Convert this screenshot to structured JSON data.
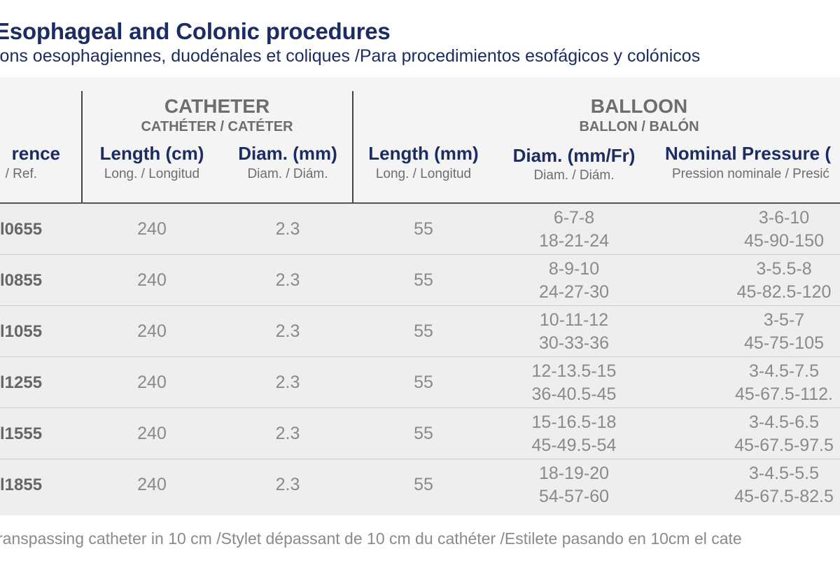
{
  "title": "Esophageal and Colonic procedures",
  "subtitle": "ions oesophagiennes, duodénales et coliques /Para procedimientos esofágicos y colónicos",
  "groups": {
    "catheter": {
      "title": "CATHETER",
      "subtitle": "CATHÉTER / CATÉTER"
    },
    "balloon": {
      "title": "BALLOON",
      "subtitle": "BALLON / BALÓN"
    }
  },
  "columns": {
    "reference": {
      "title": "rence",
      "subtitle": "/ Ref."
    },
    "cath_length": {
      "title": "Length (cm)",
      "subtitle": "Long. / Longitud"
    },
    "cath_diam": {
      "title": "Diam. (mm)",
      "subtitle": "Diam. / Diám."
    },
    "bal_length": {
      "title": "Length (mm)",
      "subtitle": "Long. / Longitud"
    },
    "bal_diam": {
      "title": "Diam. (mm/Fr)",
      "subtitle": "Diam. / Diám."
    },
    "pressure": {
      "title": "Nominal Pressure (",
      "subtitle": "Pression nominale / Presić"
    }
  },
  "rows": [
    {
      "ref": "l0655",
      "cath_length": "240",
      "cath_diam": "2.3",
      "bal_length": "55",
      "diam_mm": "6-7-8",
      "diam_fr": "18-21-24",
      "pressure_1": "3-6-10",
      "pressure_2": "45-90-150"
    },
    {
      "ref": "l0855",
      "cath_length": "240",
      "cath_diam": "2.3",
      "bal_length": "55",
      "diam_mm": "8-9-10",
      "diam_fr": "24-27-30",
      "pressure_1": "3-5.5-8",
      "pressure_2": "45-82.5-120"
    },
    {
      "ref": "l1055",
      "cath_length": "240",
      "cath_diam": "2.3",
      "bal_length": "55",
      "diam_mm": "10-11-12",
      "diam_fr": "30-33-36",
      "pressure_1": "3-5-7",
      "pressure_2": "45-75-105"
    },
    {
      "ref": "l1255",
      "cath_length": "240",
      "cath_diam": "2.3",
      "bal_length": "55",
      "diam_mm": "12-13.5-15",
      "diam_fr": "36-40.5-45",
      "pressure_1": "3-4.5-7.5",
      "pressure_2": "45-67.5-112."
    },
    {
      "ref": "l1555",
      "cath_length": "240",
      "cath_diam": "2.3",
      "bal_length": "55",
      "diam_mm": "15-16.5-18",
      "diam_fr": "45-49.5-54",
      "pressure_1": "3-4.5-6.5",
      "pressure_2": "45-67.5-97.5"
    },
    {
      "ref": "l1855",
      "cath_length": "240",
      "cath_diam": "2.3",
      "bal_length": "55",
      "diam_mm": "18-19-20",
      "diam_fr": "54-57-60",
      "pressure_1": "3-4.5-5.5",
      "pressure_2": "45-67.5-82.5"
    }
  ],
  "footnote": "ranspassing catheter in 10 cm /Stylet dépassant de 10 cm du cathéter /Estilete pasando en 10cm el cate"
}
